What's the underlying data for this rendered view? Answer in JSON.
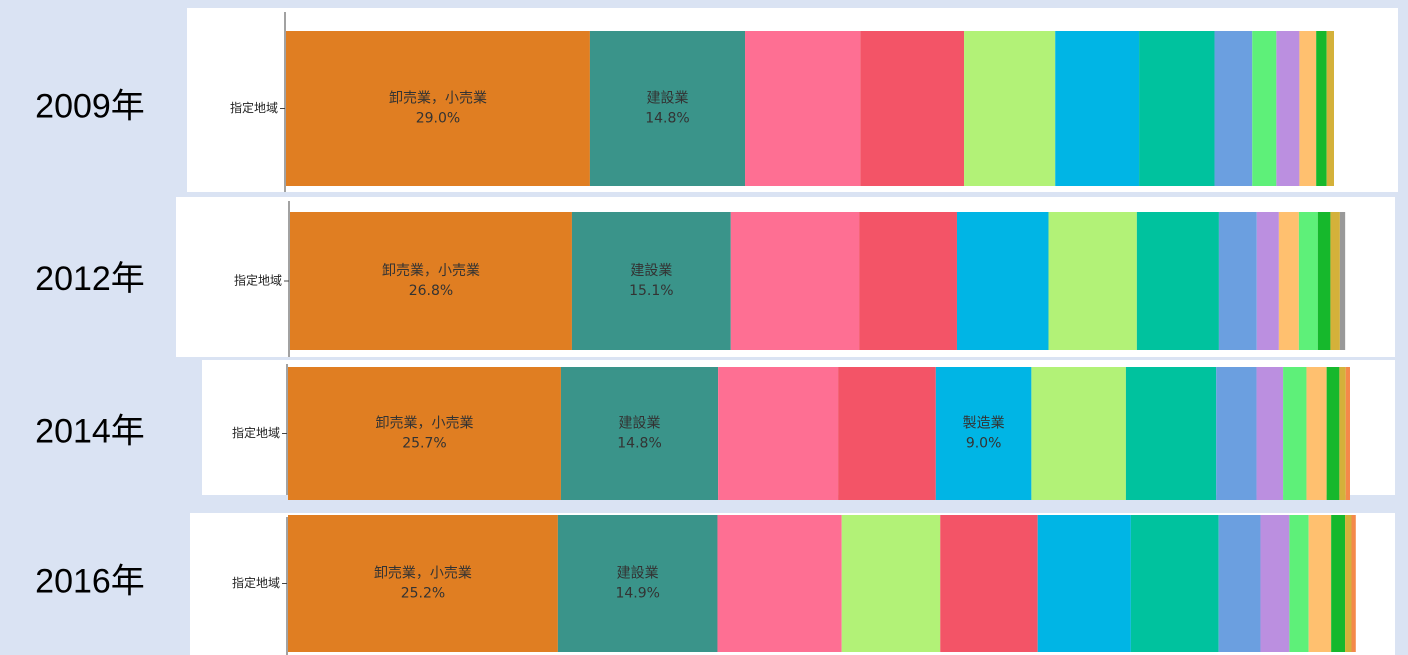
{
  "chart_data": [
    {
      "type": "bar",
      "title": "2009年",
      "categories": [
        "指定地域"
      ],
      "xlim": [
        0,
        100
      ],
      "series": [
        {
          "name": "卸売業，小売業",
          "color": "#e07e22",
          "values": [
            29.0
          ],
          "value_labels": [
            "29.0%"
          ]
        },
        {
          "name": "建設業",
          "color": "#3a948a",
          "values": [
            14.8
          ],
          "value_labels": [
            "14.8%"
          ]
        },
        {
          "color": "#fe6f93",
          "values": [
            11.0
          ]
        },
        {
          "color": "#f35467",
          "values": [
            9.9
          ]
        },
        {
          "color": "#b2f277",
          "values": [
            8.7
          ]
        },
        {
          "color": "#00b5e5",
          "values": [
            8.0
          ]
        },
        {
          "color": "#00c29e",
          "values": [
            7.2
          ]
        },
        {
          "color": "#6b9fe0",
          "values": [
            3.6
          ]
        },
        {
          "color": "#5ef079",
          "values": [
            2.3
          ]
        },
        {
          "color": "#bb8fe0",
          "values": [
            2.2
          ]
        },
        {
          "color": "#ffc06f",
          "values": [
            1.6
          ]
        },
        {
          "color": "#16b82c",
          "values": [
            1.0
          ]
        },
        {
          "color": "#d4b13a",
          "values": [
            0.7
          ]
        }
      ]
    },
    {
      "type": "bar",
      "title": "2012年",
      "categories": [
        "指定地域"
      ],
      "xlim": [
        0,
        100
      ],
      "series": [
        {
          "name": "卸売業，小売業",
          "color": "#e07e22",
          "values": [
            26.8
          ],
          "value_labels": [
            "26.8%"
          ]
        },
        {
          "name": "建設業",
          "color": "#3a948a",
          "values": [
            15.1
          ],
          "value_labels": [
            "15.1%"
          ]
        },
        {
          "color": "#fe6f93",
          "values": [
            12.2
          ]
        },
        {
          "color": "#f35467",
          "values": [
            9.3
          ]
        },
        {
          "color": "#00b5e5",
          "values": [
            8.7
          ]
        },
        {
          "color": "#b2f277",
          "values": [
            8.4
          ]
        },
        {
          "color": "#00c29e",
          "values": [
            7.8
          ]
        },
        {
          "color": "#6b9fe0",
          "values": [
            3.6
          ]
        },
        {
          "color": "#bb8fe0",
          "values": [
            2.1
          ]
        },
        {
          "color": "#ffc06f",
          "values": [
            1.9
          ]
        },
        {
          "color": "#5ef079",
          "values": [
            1.8
          ]
        },
        {
          "color": "#16b82c",
          "values": [
            1.2
          ]
        },
        {
          "color": "#d4b13a",
          "values": [
            0.9
          ]
        },
        {
          "color": "#999999",
          "values": [
            0.5
          ]
        }
      ]
    },
    {
      "type": "bar",
      "title": "2014年",
      "categories": [
        "指定地域"
      ],
      "xlim": [
        0,
        100
      ],
      "series": [
        {
          "name": "卸売業，小売業",
          "color": "#e07e22",
          "values": [
            25.7
          ],
          "value_labels": [
            "25.7%"
          ]
        },
        {
          "name": "建設業",
          "color": "#3a948a",
          "values": [
            14.8
          ],
          "value_labels": [
            "14.8%"
          ]
        },
        {
          "color": "#fe6f93",
          "values": [
            11.3
          ]
        },
        {
          "color": "#f35467",
          "values": [
            9.2
          ]
        },
        {
          "name": "製造業",
          "color": "#00b5e5",
          "values": [
            9.0
          ],
          "value_labels": [
            "9.0%"
          ]
        },
        {
          "color": "#b2f277",
          "values": [
            8.9
          ]
        },
        {
          "color": "#00c29e",
          "values": [
            8.5
          ]
        },
        {
          "color": "#6b9fe0",
          "values": [
            3.8
          ]
        },
        {
          "color": "#bb8fe0",
          "values": [
            2.5
          ]
        },
        {
          "color": "#5ef079",
          "values": [
            2.2
          ]
        },
        {
          "color": "#ffc06f",
          "values": [
            1.9
          ]
        },
        {
          "color": "#16b82c",
          "values": [
            1.2
          ]
        },
        {
          "color": "#d4b13a",
          "values": [
            0.6
          ]
        },
        {
          "color": "#f4894a",
          "values": [
            0.4
          ]
        }
      ]
    },
    {
      "type": "bar",
      "title": "2016年",
      "categories": [
        "指定地域"
      ],
      "xlim": [
        0,
        100
      ],
      "series": [
        {
          "name": "卸売業，小売業",
          "color": "#e07e22",
          "values": [
            25.2
          ],
          "value_labels": [
            "25.2%"
          ]
        },
        {
          "name": "建設業",
          "color": "#3a948a",
          "values": [
            14.9
          ],
          "value_labels": [
            "14.9%"
          ]
        },
        {
          "color": "#fe6f93",
          "values": [
            11.6
          ]
        },
        {
          "color": "#b2f277",
          "values": [
            9.2
          ]
        },
        {
          "color": "#f35467",
          "values": [
            9.1
          ]
        },
        {
          "color": "#00b5e5",
          "values": [
            8.7
          ]
        },
        {
          "color": "#00c29e",
          "values": [
            8.2
          ]
        },
        {
          "color": "#6b9fe0",
          "values": [
            3.9
          ]
        },
        {
          "color": "#bb8fe0",
          "values": [
            2.7
          ]
        },
        {
          "color": "#5ef079",
          "values": [
            1.8
          ]
        },
        {
          "color": "#ffc06f",
          "values": [
            2.1
          ]
        },
        {
          "color": "#16b82c",
          "values": [
            1.3
          ]
        },
        {
          "color": "#d4b13a",
          "values": [
            0.6
          ]
        },
        {
          "color": "#f4894a",
          "values": [
            0.4
          ]
        }
      ]
    }
  ]
}
